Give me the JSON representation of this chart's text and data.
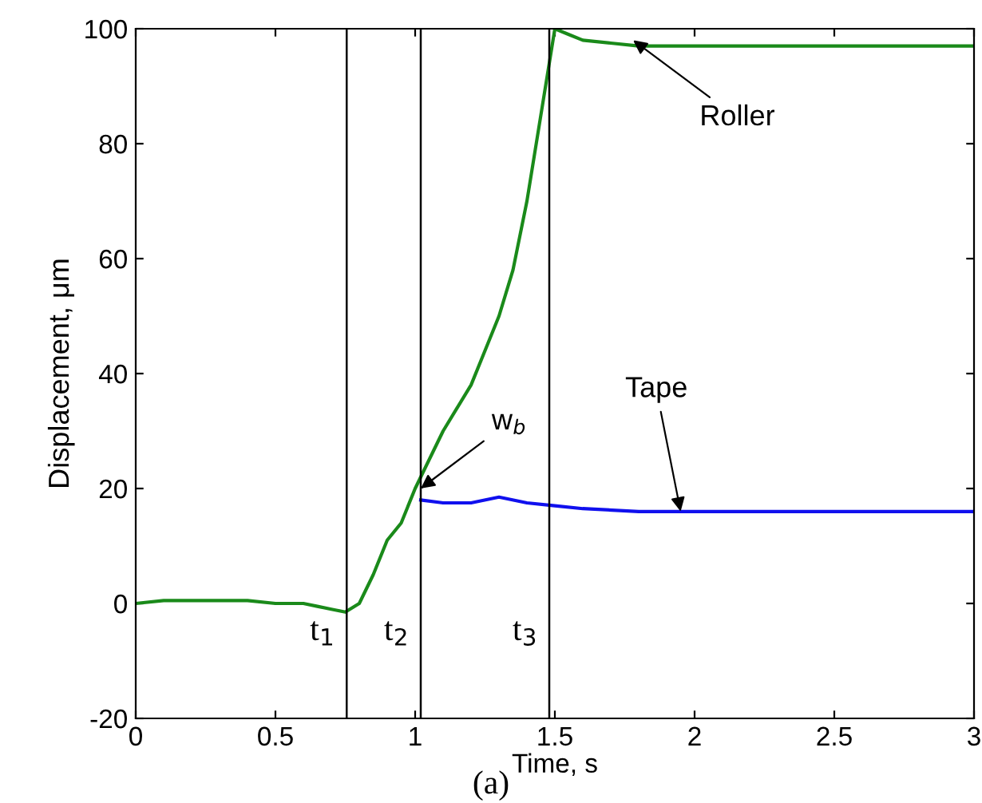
{
  "chart_data": {
    "type": "line",
    "xlabel": "Time, s",
    "ylabel": "Displacement, μm",
    "xlim": [
      0,
      3
    ],
    "xticks": [
      0,
      0.5,
      1,
      1.5,
      2,
      2.5,
      3
    ],
    "ylim": [
      -20,
      100
    ],
    "yticks": [
      -20,
      0,
      20,
      40,
      60,
      80,
      100
    ],
    "grid": false,
    "legend": false,
    "marker": "none",
    "line_style": "solid",
    "series": [
      {
        "color": "#1a8a1a",
        "x": [
          0,
          0.1,
          0.2,
          0.3,
          0.4,
          0.5,
          0.6,
          0.65,
          0.7,
          0.75,
          0.8,
          0.85,
          0.9,
          0.95,
          1.0,
          1.05,
          1.1,
          1.15,
          1.2,
          1.25,
          1.3,
          1.35,
          1.4,
          1.45,
          1.5,
          1.55,
          1.6,
          1.7,
          1.8,
          1.9,
          2.0,
          2.25,
          2.5,
          2.75,
          3.0
        ],
        "values": [
          0,
          0.5,
          0.5,
          0.5,
          0.5,
          0,
          0,
          -0.5,
          -1,
          -1.5,
          0,
          5,
          11,
          14,
          20,
          25,
          30,
          34,
          38,
          44,
          50,
          58,
          70,
          85,
          100,
          99,
          98,
          97.5,
          97,
          97,
          97,
          97,
          97,
          97,
          97
        ]
      },
      {
        "color": "#1010ee",
        "x": [
          1.02,
          1.1,
          1.2,
          1.3,
          1.4,
          1.5,
          1.6,
          1.8,
          2.0,
          2.25,
          2.5,
          2.75,
          3.0
        ],
        "values": [
          18,
          17.5,
          17.5,
          18.5,
          17.5,
          17,
          16.5,
          16,
          16,
          16,
          16,
          16,
          16
        ]
      }
    ],
    "ref_lines": [
      {
        "axis": "x",
        "value": 0.755,
        "label": "t$_{1}$",
        "color": "#000000"
      },
      {
        "axis": "x",
        "value": 1.02,
        "label": "t$_{2}$",
        "color": "#000000"
      },
      {
        "axis": "x",
        "value": 1.48,
        "label": "t$_{3}$",
        "color": "#000000"
      }
    ],
    "annotations": [
      {
        "text": "Roller",
        "x": 1.78,
        "y": 98
      },
      {
        "text": "Tape",
        "x": 1.95,
        "y": 16
      },
      {
        "text": "w$_{b}$",
        "x": 1.02,
        "y": 20
      },
      "(a)"
    ]
  }
}
